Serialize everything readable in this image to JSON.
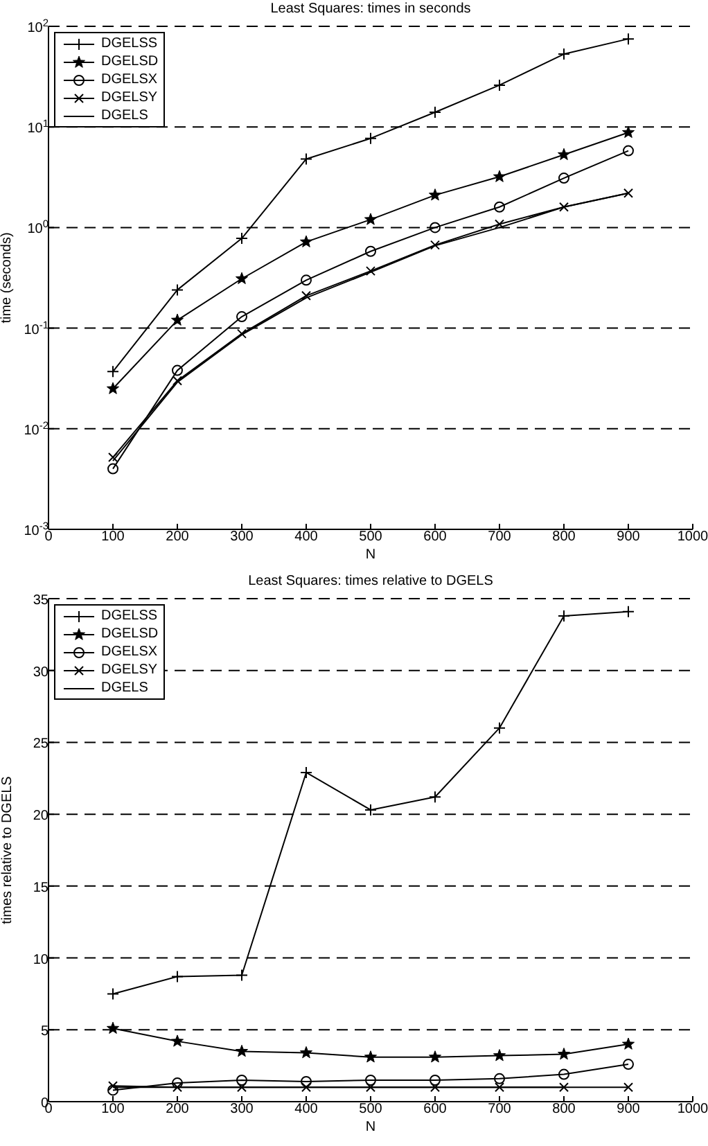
{
  "chart_data": [
    {
      "type": "line",
      "title": "Least Squares: times in seconds",
      "xlabel": "N",
      "ylabel": "time (seconds)",
      "log": "y",
      "grid": "y",
      "legend": "top left",
      "line_style": "solid",
      "x": [
        100,
        200,
        300,
        400,
        500,
        600,
        700,
        800,
        900
      ],
      "xlim": [
        0,
        1000
      ],
      "xticks": [
        0,
        100,
        200,
        300,
        400,
        500,
        600,
        700,
        800,
        900,
        1000
      ],
      "ylim": [
        0.001,
        100
      ],
      "yticks": [
        {
          "value": 0.001,
          "label": "10$^{-3}$"
        },
        {
          "value": 0.01,
          "label": "10$^{-2}$"
        },
        {
          "value": 0.1,
          "label": "10$^{-1}$"
        },
        {
          "value": 1,
          "label": "10$^{0}$"
        },
        {
          "value": 10,
          "label": "10$^{1}$"
        },
        {
          "value": 100,
          "label": "10$^{2}$"
        }
      ],
      "series": [
        {
          "name": "DGELSS",
          "color": "#000000",
          "marker": "cross",
          "values": [
            0.037,
            0.24,
            0.78,
            4.8,
            7.7,
            14,
            26,
            53,
            75
          ]
        },
        {
          "name": "DGELSD",
          "color": "#000000",
          "marker": "star",
          "values": [
            0.025,
            0.12,
            0.31,
            0.72,
            1.2,
            2.1,
            3.2,
            5.3,
            8.8
          ]
        },
        {
          "name": "DGELSX",
          "color": "#000000",
          "marker": "circle",
          "values": [
            0.004,
            0.038,
            0.13,
            0.3,
            0.58,
            1.0,
            1.6,
            3.1,
            5.8
          ]
        },
        {
          "name": "DGELSY",
          "color": "#000000",
          "marker": "x",
          "values": [
            0.0052,
            0.03,
            0.088,
            0.21,
            0.37,
            0.67,
            1.08,
            1.6,
            2.2
          ]
        },
        {
          "name": "DGELS",
          "color": "#000000",
          "marker": "none",
          "values": [
            0.0048,
            0.029,
            0.086,
            0.2,
            0.36,
            0.66,
            1.0,
            1.6,
            2.2
          ]
        }
      ]
    },
    {
      "type": "line",
      "title": "Least Squares: times relative to DGELS",
      "xlabel": "N",
      "ylabel": "times relative to DGELS",
      "grid": "y",
      "legend": "top left",
      "line_style": "solid",
      "x": [
        100,
        200,
        300,
        400,
        500,
        600,
        700,
        800,
        900
      ],
      "xlim": [
        0,
        1000
      ],
      "xticks": [
        0,
        100,
        200,
        300,
        400,
        500,
        600,
        700,
        800,
        900,
        1000
      ],
      "ylim": [
        0,
        35
      ],
      "yticks": [
        0,
        5,
        10,
        15,
        20,
        25,
        30,
        35
      ],
      "series": [
        {
          "name": "DGELSS",
          "color": "#000000",
          "marker": "cross",
          "values": [
            7.5,
            8.7,
            8.8,
            22.9,
            20.3,
            21.2,
            26,
            33.8,
            34.1
          ]
        },
        {
          "name": "DGELSD",
          "color": "#000000",
          "marker": "star",
          "values": [
            5.1,
            4.2,
            3.5,
            3.4,
            3.1,
            3.1,
            3.2,
            3.3,
            4.0
          ]
        },
        {
          "name": "DGELSX",
          "color": "#000000",
          "marker": "circle",
          "values": [
            0.8,
            1.3,
            1.5,
            1.4,
            1.5,
            1.5,
            1.6,
            1.9,
            2.6
          ]
        },
        {
          "name": "DGELSY",
          "color": "#000000",
          "marker": "x",
          "values": [
            1.1,
            1.0,
            1.0,
            1.0,
            1.0,
            1.0,
            1.0,
            1.0,
            1.0
          ]
        },
        {
          "name": "DGELS",
          "color": "#000000",
          "marker": "none",
          "values": [
            1,
            1,
            1,
            1,
            1,
            1,
            1,
            1,
            null
          ]
        }
      ]
    }
  ]
}
